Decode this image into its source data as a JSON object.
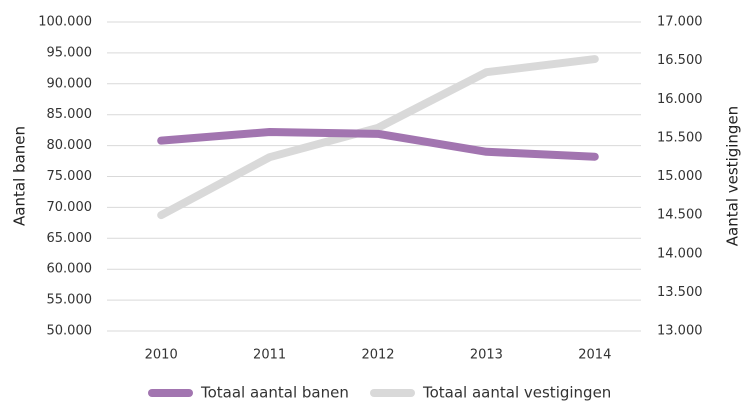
{
  "chart_data": {
    "type": "line",
    "categories": [
      "2010",
      "2011",
      "2012",
      "2013",
      "2014"
    ],
    "series": [
      {
        "name": "Totaal aantal banen",
        "color": "#a275b0",
        "values": [
          80800,
          82200,
          81900,
          79000,
          78200
        ]
      },
      {
        "name": "Totaal aantal vestigingen",
        "color": "#d9d9d9",
        "axis": "y2",
        "values": [
          14500,
          15250,
          15630,
          16350,
          16520
        ]
      }
    ],
    "ylabel": "Aantal banen",
    "y2label": "Aantal vestigingen",
    "ylim": [
      50000,
      100000
    ],
    "yticks": [
      {
        "value": 50000,
        "label": "50.000"
      },
      {
        "value": 55000,
        "label": "55.000"
      },
      {
        "value": 60000,
        "label": "60.000"
      },
      {
        "value": 65000,
        "label": "65.000"
      },
      {
        "value": 70000,
        "label": "70.000"
      },
      {
        "value": 75000,
        "label": "75.000"
      },
      {
        "value": 80000,
        "label": "80.000"
      },
      {
        "value": 85000,
        "label": "85.000"
      },
      {
        "value": 90000,
        "label": "90.000"
      },
      {
        "value": 95000,
        "label": "95.000"
      },
      {
        "value": 100000,
        "label": "100.000"
      }
    ],
    "y2lim": [
      13000,
      17000
    ],
    "y2ticks": [
      {
        "value": 13000,
        "label": "13.000"
      },
      {
        "value": 13500,
        "label": "13.500"
      },
      {
        "value": 14000,
        "label": "14.000"
      },
      {
        "value": 14500,
        "label": "14.500"
      },
      {
        "value": 15000,
        "label": "15.000"
      },
      {
        "value": 15500,
        "label": "15.500"
      },
      {
        "value": 16000,
        "label": "16.000"
      },
      {
        "value": 16500,
        "label": "16.500"
      },
      {
        "value": 17000,
        "label": "17.000"
      }
    ],
    "grid": true,
    "legend": "bottom"
  }
}
